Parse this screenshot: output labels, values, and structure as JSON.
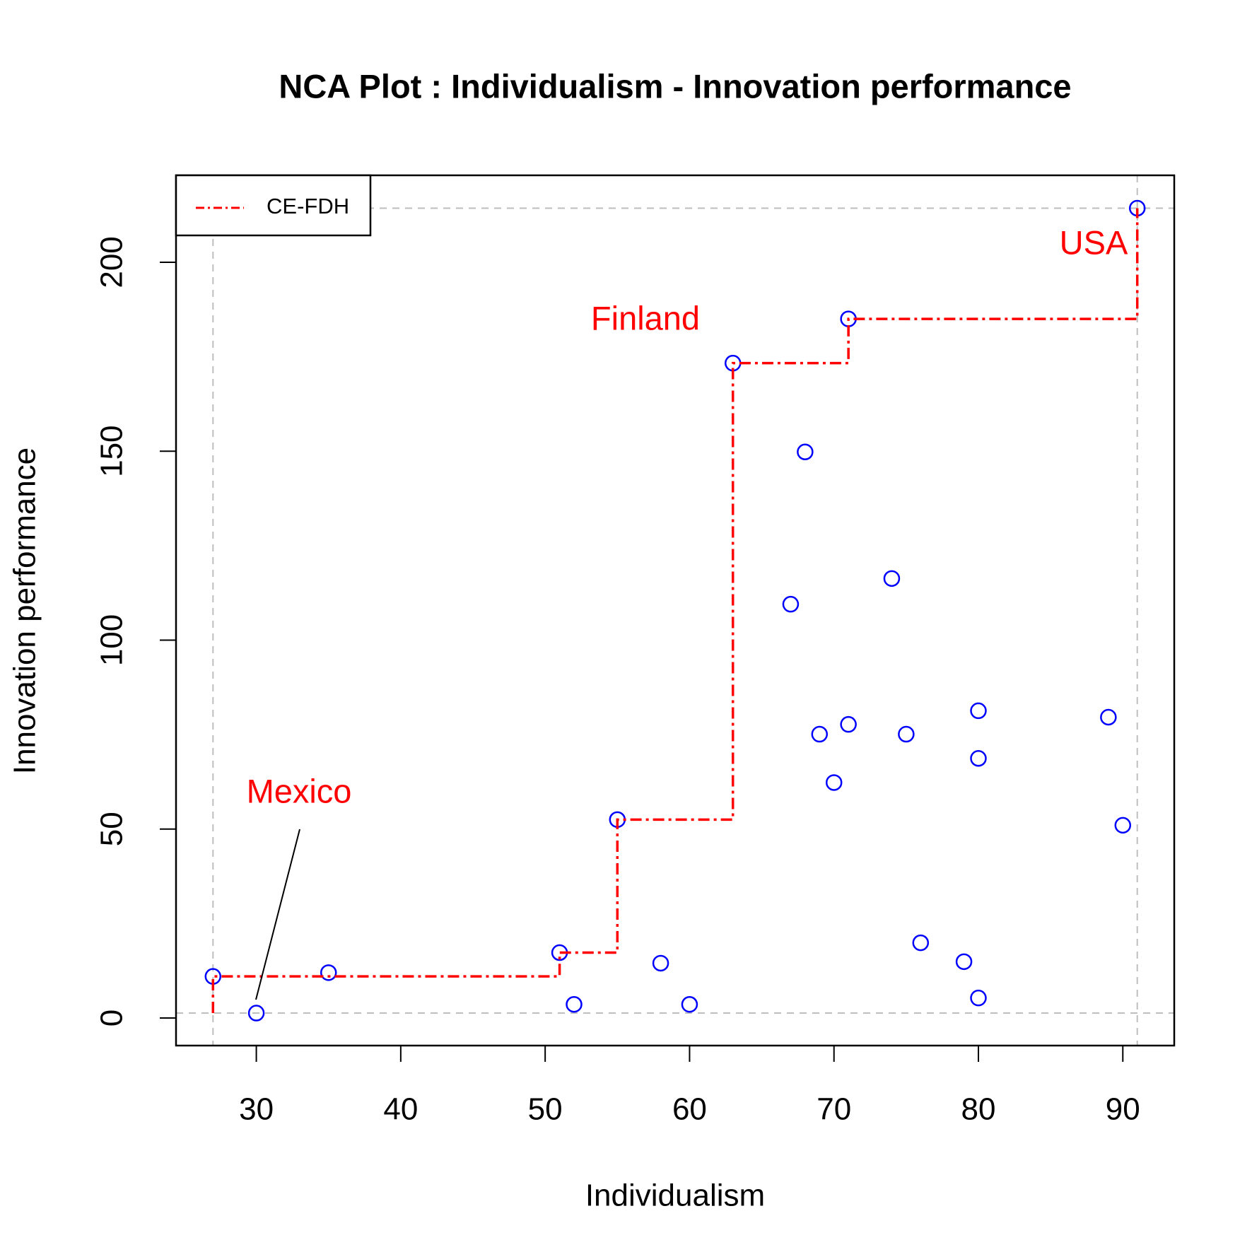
{
  "chart_data": {
    "type": "scatter",
    "title": "NCA Plot : Individualism - Innovation performance",
    "x_label": "Individualism",
    "y_label": "Innovation performance",
    "xlim": [
      24.44,
      93.56
    ],
    "ylim": [
      -7.3,
      223
    ],
    "xticks": [
      30,
      40,
      50,
      60,
      70,
      80,
      90
    ],
    "yticks": [
      0,
      50,
      100,
      150,
      200
    ],
    "legend": "topleft",
    "series": [
      {
        "color": "#0000ff",
        "x": [
          27,
          30,
          35,
          51,
          52,
          55,
          58,
          60,
          63,
          67,
          68,
          69,
          70,
          71,
          71,
          74,
          75,
          76,
          79,
          80,
          80,
          80,
          89,
          90,
          91
        ],
        "y": [
          11,
          1.3,
          12,
          17.3,
          3.6,
          52.5,
          14.5,
          3.6,
          173.3,
          109.5,
          149.8,
          75.1,
          62.3,
          185,
          77.7,
          116.3,
          75.1,
          19.9,
          14.9,
          81.3,
          68.7,
          5.3,
          79.6,
          51,
          214.3
        ]
      },
      {
        "name": "CE-FDH",
        "color": "#ff0000",
        "style": "dash-dot",
        "x": [
          27,
          27,
          51,
          51,
          55,
          55,
          63,
          63,
          71,
          71,
          91,
          91
        ],
        "y": [
          1.3,
          11,
          11,
          17.3,
          17.3,
          52.5,
          52.5,
          173.3,
          173.3,
          185,
          185,
          214.3
        ]
      }
    ],
    "reference_lines": {
      "color": "#bebebe",
      "x": [
        27,
        91
      ],
      "y": [
        1.3,
        214.3
      ]
    },
    "annotations": [
      {
        "text": "Mexico",
        "color": "#ff0000"
      },
      {
        "text": "Finland",
        "color": "#ff0000"
      },
      {
        "text": "USA",
        "color": "#ff0000"
      }
    ]
  }
}
